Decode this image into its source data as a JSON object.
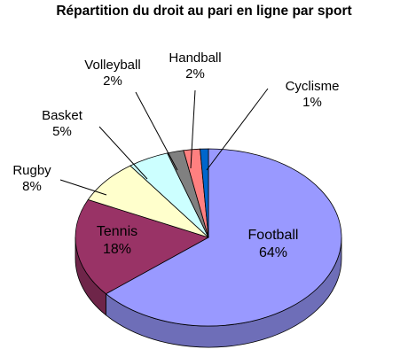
{
  "chart_data": {
    "type": "pie",
    "title": "Répartition du droit au pari en ligne par sport",
    "slices": [
      {
        "name": "Football",
        "value": 64,
        "label": "64%",
        "color": "#9999ff"
      },
      {
        "name": "Tennis",
        "value": 18,
        "label": "18%",
        "color": "#993366"
      },
      {
        "name": "Rugby",
        "value": 8,
        "label": "8%",
        "color": "#ffffcc"
      },
      {
        "name": "Basket",
        "value": 5,
        "label": "5%",
        "color": "#ccffff"
      },
      {
        "name": "Volleyball",
        "value": 2,
        "label": "2%",
        "color": "#808080"
      },
      {
        "name": "Handball",
        "value": 2,
        "label": "2%",
        "color": "#ff8080"
      },
      {
        "name": "Cyclisme",
        "value": 1,
        "label": "1%",
        "color": "#0066cc"
      }
    ]
  }
}
